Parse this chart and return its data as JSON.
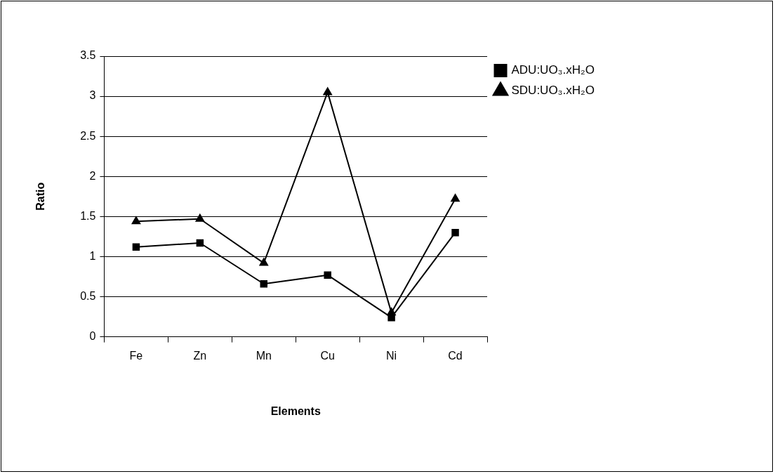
{
  "chart_data": {
    "type": "line",
    "xlabel": "Elements",
    "ylabel": "Ratio",
    "categories": [
      "Fe",
      "Zn",
      "Mn",
      "Cu",
      "Ni",
      "Cd"
    ],
    "series": [
      {
        "name": "ADU:UO₃.xH₂O",
        "color": "#000000",
        "marker": "square",
        "values": [
          1.12,
          1.17,
          0.66,
          0.77,
          0.24,
          1.3
        ]
      },
      {
        "name": "SDU:UO₃.xH₂O",
        "color": "#000000",
        "marker": "triangle",
        "values": [
          1.44,
          1.47,
          0.92,
          3.05,
          0.3,
          1.72
        ]
      }
    ],
    "ylim": [
      0,
      3.5
    ],
    "yticks": [
      0,
      0.5,
      1,
      1.5,
      2,
      2.5,
      3,
      3.5
    ],
    "grid": "y",
    "legend": "top right",
    "line_style": "solid"
  }
}
